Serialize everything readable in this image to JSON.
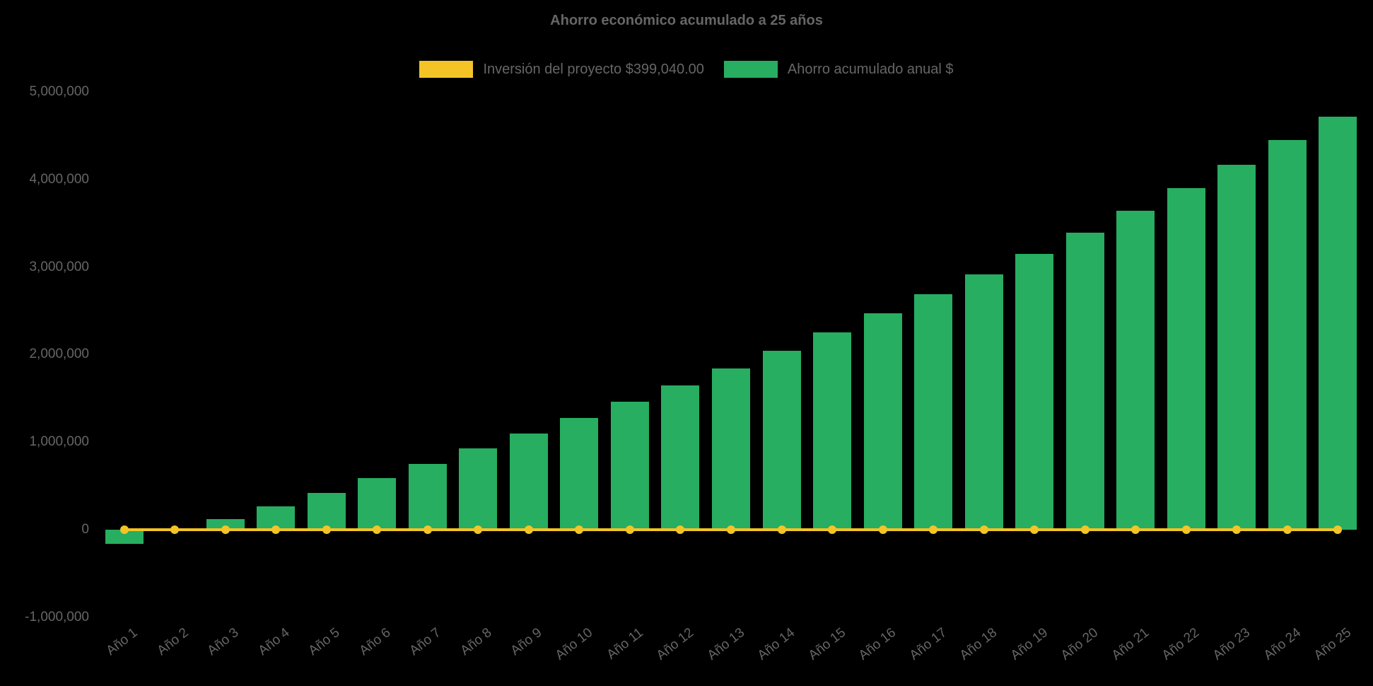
{
  "chart_data": {
    "type": "bar",
    "title": "Ahorro económico acumulado a 25 años",
    "background": "#000000",
    "text_color": "#666666",
    "grid": false,
    "legend_position": "top",
    "ylim": [
      -1000000,
      5000000
    ],
    "y_ticks": [
      {
        "value": 5000000,
        "label": "5,000,000"
      },
      {
        "value": 4000000,
        "label": "4,000,000"
      },
      {
        "value": 3000000,
        "label": "3,000,000"
      },
      {
        "value": 2000000,
        "label": "2,000,000"
      },
      {
        "value": 1000000,
        "label": "1,000,000"
      },
      {
        "value": 0,
        "label": "0"
      },
      {
        "value": -1000000,
        "label": "-1,000,000"
      }
    ],
    "categories": [
      "Año 1",
      "Año 2",
      "Año 3",
      "Año 4",
      "Año 5",
      "Año 6",
      "Año 7",
      "Año 8",
      "Año 9",
      "Año 10",
      "Año 11",
      "Año 12",
      "Año 13",
      "Año 14",
      "Año 15",
      "Año 16",
      "Año 17",
      "Año 18",
      "Año 19",
      "Año 20",
      "Año 21",
      "Año 22",
      "Año 23",
      "Año 24",
      "Año 25"
    ],
    "series": [
      {
        "name": "Inversión del proyecto $399,040.00",
        "type": "line",
        "color": "#F4C427",
        "investment_amount": 399040,
        "values": [
          0,
          0,
          0,
          0,
          0,
          0,
          0,
          0,
          0,
          0,
          0,
          0,
          0,
          0,
          0,
          0,
          0,
          0,
          0,
          0,
          0,
          0,
          0,
          0,
          0
        ]
      },
      {
        "name": "Ahorro acumulado anual $",
        "type": "bar",
        "color": "#27AE60",
        "values": [
          -160000,
          20000,
          120000,
          270000,
          420000,
          590000,
          750000,
          930000,
          1100000,
          1280000,
          1460000,
          1650000,
          1840000,
          2040000,
          2250000,
          2470000,
          2690000,
          2920000,
          3150000,
          3390000,
          3640000,
          3900000,
          4170000,
          4450000,
          4720000
        ]
      }
    ]
  }
}
